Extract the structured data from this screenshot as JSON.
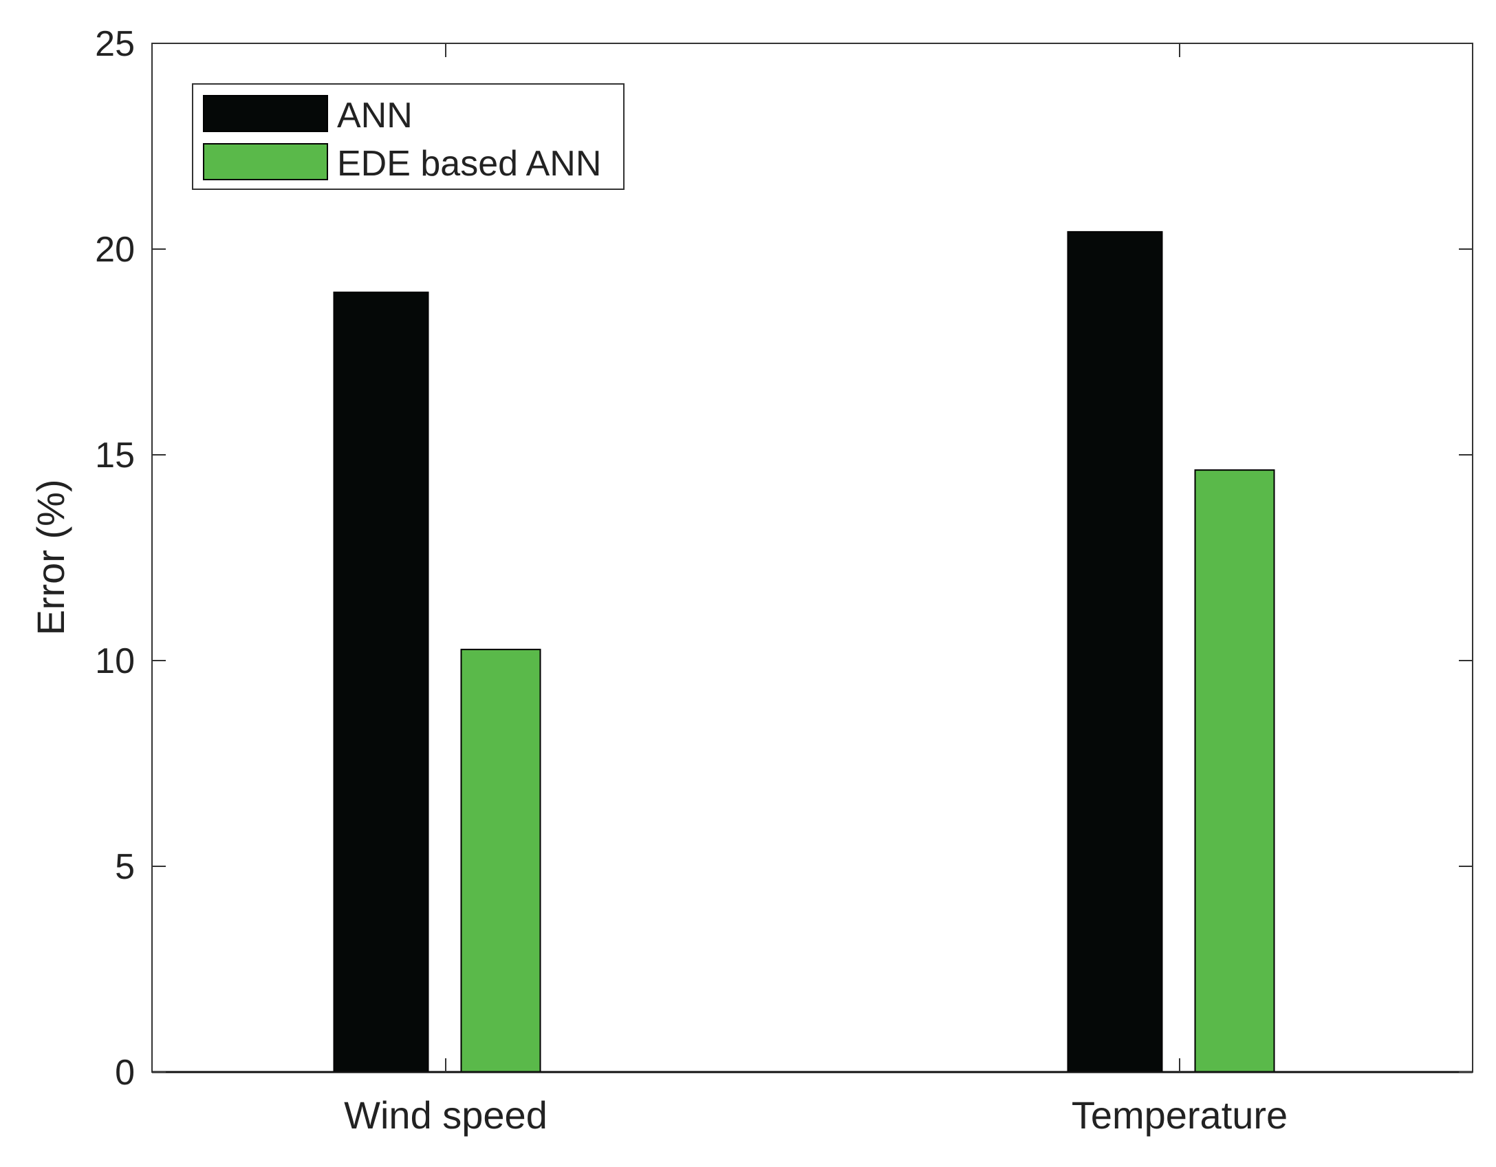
{
  "chart_data": {
    "type": "bar",
    "categories": [
      "Wind speed",
      "Temperature"
    ],
    "series": [
      {
        "name": "ANN",
        "values": [
          18.95,
          20.42
        ],
        "color": "#050807"
      },
      {
        "name": "EDE based ANN",
        "values": [
          10.27,
          14.63
        ],
        "color": "#5ab94a"
      }
    ],
    "xlabel": "",
    "ylabel": "Error (%)",
    "ylim": [
      0,
      25
    ],
    "yticks": [
      0,
      5,
      10,
      15,
      20,
      25
    ],
    "grid": false,
    "legend_position": "top-left"
  }
}
